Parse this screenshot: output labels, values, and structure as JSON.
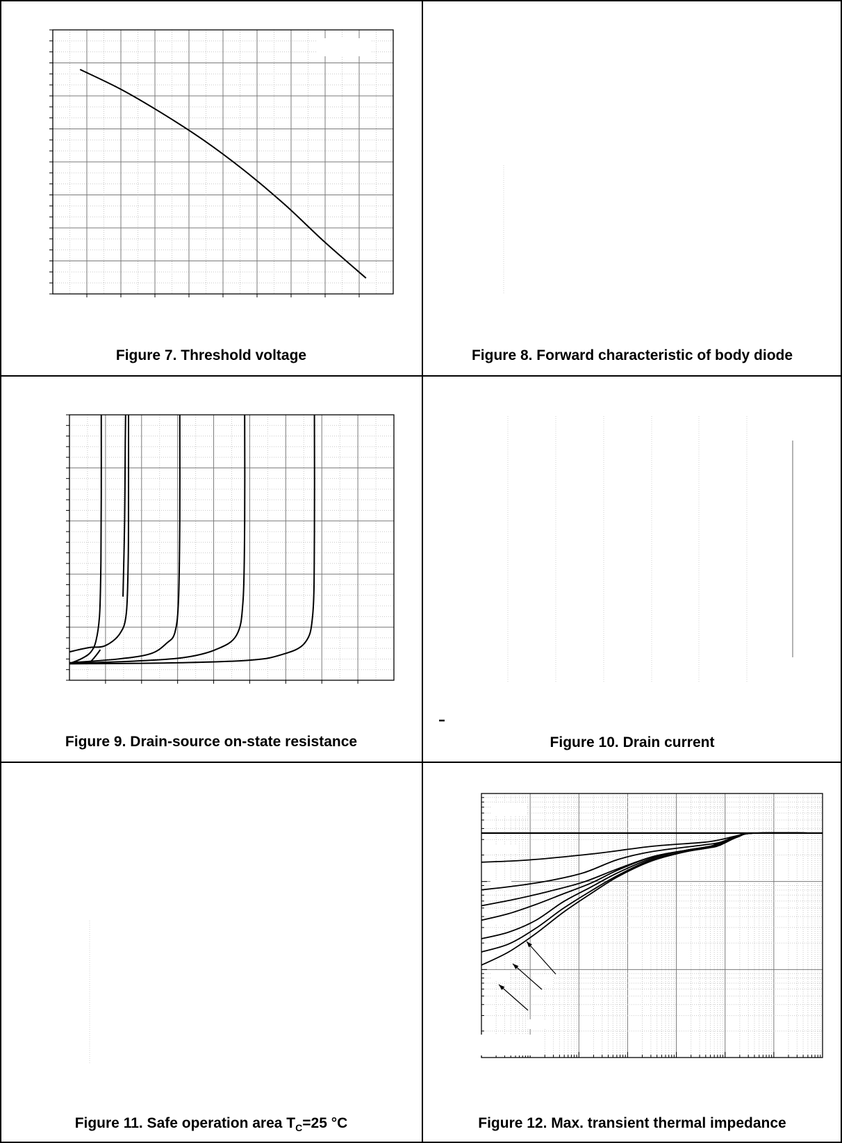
{
  "figures": [
    {
      "caption": "Figure 7. Threshold voltage"
    },
    {
      "caption": "Figure 8. Forward characteristic of body diode"
    },
    {
      "caption": "Figure 9. Drain-source on-state resistance"
    },
    {
      "caption": "Figure 10. Drain current"
    },
    {
      "caption": "Figure 11. Safe operation area T",
      "caption_sub": "C",
      "caption_tail": "=25 °C"
    },
    {
      "caption": "Figure 12. Max. transient thermal impedance"
    }
  ],
  "colors": {
    "border": "#000000",
    "grid": "#7a7a7a",
    "minor_grid": "#c8c8c8",
    "curve": "#000000"
  },
  "chart_data": [
    {
      "type": "line",
      "title": "",
      "xlim": [
        0,
        100
      ],
      "ylim": [
        0,
        100
      ],
      "grid": true,
      "series": [
        {
          "x": [
            8,
            20,
            32,
            44,
            56,
            68,
            80,
            92
          ],
          "y": [
            85,
            77.5,
            68.5,
            58.5,
            47,
            34,
            19.5,
            6
          ]
        }
      ]
    },
    {
      "type": "line",
      "title": "",
      "grid": false,
      "series": []
    },
    {
      "type": "line",
      "title": "",
      "xlim": [
        0,
        100
      ],
      "ylim": [
        0,
        100
      ],
      "grid": true,
      "series": [
        {
          "x": [
            0,
            3.5,
            6.5,
            8.2,
            9.3,
            9.7,
            9.8,
            9.8
          ],
          "y": [
            6.3,
            8,
            10.5,
            15,
            25,
            45,
            70,
            100
          ]
        },
        {
          "x": [
            0,
            6,
            11,
            15.5,
            17.5,
            18.1,
            18.2,
            18.2
          ],
          "y": [
            10.7,
            12.3,
            13,
            17.5,
            25,
            45,
            70,
            100
          ]
        },
        {
          "x": [
            16.5,
            17,
            17.2,
            17.3
          ],
          "y": [
            31.5,
            60,
            90,
            100
          ]
        },
        {
          "x": [
            0,
            15,
            25,
            30,
            32.5,
            33.6,
            34,
            34
          ],
          "y": [
            6.6,
            8,
            10,
            14,
            18,
            30,
            60,
            100
          ]
        },
        {
          "x": [
            0,
            20,
            35,
            45,
            51.5,
            53.5,
            54,
            54
          ],
          "y": [
            6.4,
            7.2,
            8.5,
            11.5,
            17,
            30,
            60,
            100
          ]
        },
        {
          "x": [
            0,
            30,
            55,
            65,
            72.5,
            75,
            75.5,
            75.5
          ],
          "y": [
            6.2,
            6.5,
            7.5,
            9.5,
            14,
            25,
            55,
            100
          ]
        },
        {
          "x": [
            5,
            6.5,
            8.3,
            9.5
          ],
          "y": [
            6.2,
            7,
            9.5,
            11.5
          ]
        }
      ]
    },
    {
      "type": "line",
      "title": "",
      "grid": false,
      "series": []
    },
    {
      "type": "line",
      "title": "",
      "grid": false,
      "series": []
    },
    {
      "type": "line",
      "title": "",
      "xscale": "log",
      "yscale": "log",
      "grid": true,
      "series": [
        {
          "x": [
            0,
            100
          ],
          "y": [
            85,
            85
          ]
        },
        {
          "x": [
            0,
            10,
            20,
            35,
            50,
            65,
            70,
            75,
            80,
            100
          ],
          "y": [
            74,
            74.5,
            75.5,
            77.5,
            80,
            81.5,
            82.5,
            84,
            85,
            85
          ]
        },
        {
          "x": [
            0,
            10,
            20,
            30,
            40,
            50,
            65,
            70,
            75,
            80,
            100
          ],
          "y": [
            63.5,
            65,
            67,
            70,
            75,
            78,
            80.5,
            81.5,
            84,
            85,
            85
          ]
        },
        {
          "x": [
            0,
            10,
            20,
            30,
            40,
            50,
            60,
            67,
            70,
            75,
            80,
            100
          ],
          "y": [
            57.5,
            60,
            63,
            66.5,
            71.5,
            76,
            78.5,
            80,
            81.5,
            83.5,
            85,
            85
          ]
        },
        {
          "x": [
            0,
            8,
            16,
            24,
            32,
            40,
            50,
            60,
            67,
            70,
            75,
            80,
            100
          ],
          "y": [
            52,
            54.5,
            58,
            62,
            66,
            71,
            76,
            78.5,
            80,
            81,
            83.5,
            85,
            85
          ]
        },
        {
          "x": [
            0,
            8,
            16,
            24,
            32,
            40,
            50,
            60,
            67,
            70,
            75,
            80,
            100
          ],
          "y": [
            45,
            47.5,
            52,
            59,
            64.5,
            70,
            75.5,
            78.5,
            79.5,
            80.5,
            83.5,
            85,
            85
          ]
        },
        {
          "x": [
            0,
            8,
            16,
            24,
            32,
            40,
            50,
            60,
            67,
            70,
            75,
            80,
            100
          ],
          "y": [
            40,
            43,
            49,
            56.5,
            63,
            69,
            75,
            78,
            79.5,
            80.5,
            83.5,
            85,
            85
          ]
        },
        {
          "x": [
            0,
            8,
            16,
            24,
            32,
            40,
            50,
            60,
            67,
            70,
            75,
            80,
            100
          ],
          "y": [
            35,
            40,
            47,
            55,
            62,
            68.5,
            74.5,
            78,
            79.5,
            80.5,
            83.5,
            85,
            85
          ]
        }
      ]
    }
  ]
}
